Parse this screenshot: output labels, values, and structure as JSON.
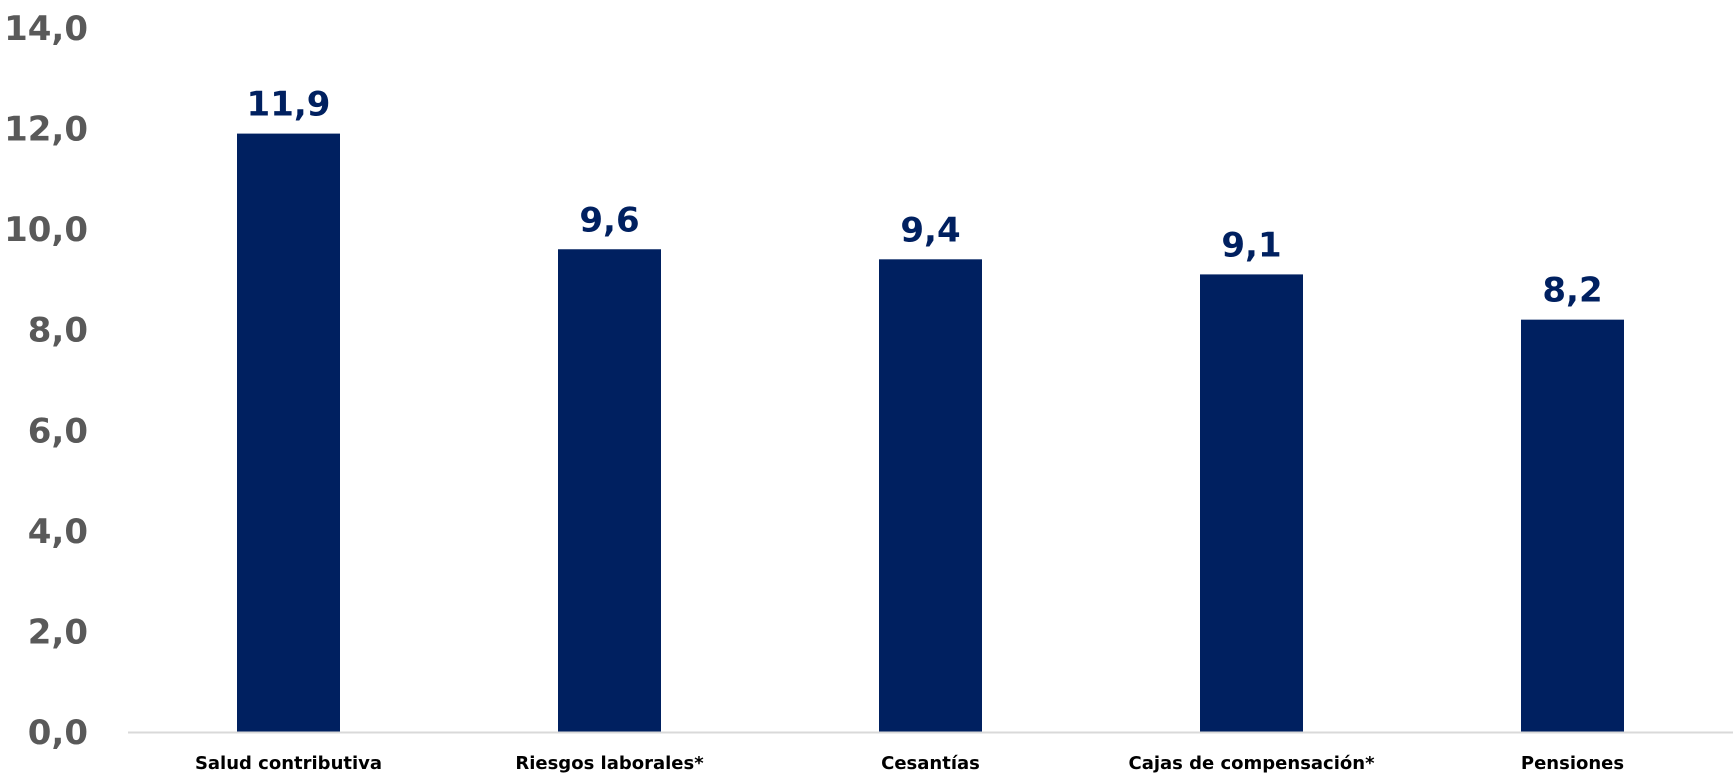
{
  "chart_data": {
    "type": "bar",
    "title": "",
    "xlabel": "",
    "ylabel": "",
    "categories": [
      "Salud contributiva",
      "Riesgos laborales*",
      "Cesantías",
      "Cajas de compensación*",
      "Pensiones"
    ],
    "values": [
      11.9,
      9.6,
      9.4,
      9.1,
      8.2
    ],
    "value_labels": [
      "11,9",
      "9,6",
      "9,4",
      "9,1",
      "8,2"
    ],
    "ylim": [
      0,
      14
    ],
    "yticks": [
      0,
      2,
      4,
      6,
      8,
      10,
      12,
      14
    ],
    "ytick_labels": [
      "0,0",
      "2,0",
      "4,0",
      "6,0",
      "8,0",
      "10,0",
      "12,0",
      "14,0"
    ],
    "grid": false,
    "legend": "none",
    "colors": {
      "bar": "#002060",
      "axis_line": "#d9d9d9",
      "tick_label": "#595959",
      "data_label": "#002060",
      "category_label": "#000000"
    }
  }
}
